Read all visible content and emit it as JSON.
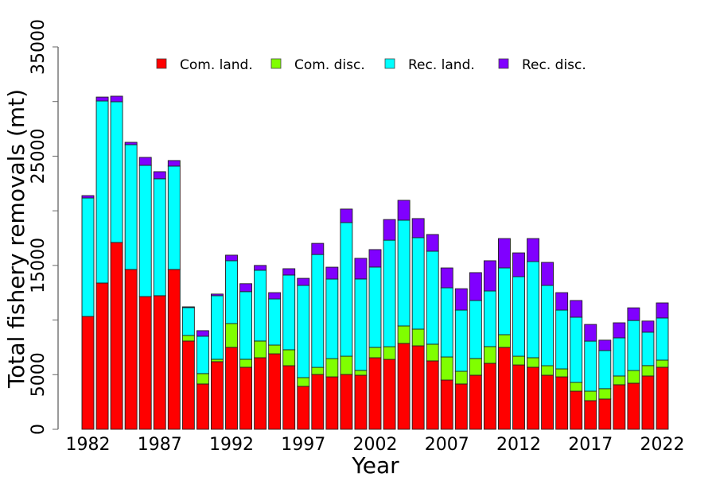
{
  "chart_data": {
    "type": "bar",
    "stacked": true,
    "title": "",
    "xlabel": "Year",
    "ylabel": "Total fishery removals (mt)",
    "ylim": [
      0,
      35000
    ],
    "yticks": [
      0,
      5000,
      10000,
      15000,
      20000,
      25000,
      30000,
      35000
    ],
    "ytick_labels": [
      "0",
      "5000",
      "",
      "15000",
      "",
      "25000",
      "",
      "35000"
    ],
    "xtick_labels": [
      "1982",
      "1987",
      "1992",
      "1997",
      "2002",
      "2007",
      "2012",
      "2017",
      "2022"
    ],
    "legend_position": "top-center",
    "grid": false,
    "categories": [
      1982,
      1983,
      1984,
      1985,
      1986,
      1987,
      1988,
      1989,
      1990,
      1991,
      1992,
      1993,
      1994,
      1995,
      1996,
      1997,
      1998,
      1999,
      2000,
      2001,
      2002,
      2003,
      2004,
      2005,
      2006,
      2007,
      2008,
      2009,
      2010,
      2011,
      2012,
      2013,
      2014,
      2015,
      2016,
      2017,
      2018,
      2019,
      2020,
      2021,
      2022
    ],
    "series": [
      {
        "name": "Com. land.",
        "color": "#FF0000",
        "values": [
          10330,
          13390,
          17100,
          14630,
          12150,
          12230,
          14630,
          8080,
          4150,
          6190,
          7500,
          5680,
          6550,
          6910,
          5820,
          3930,
          5020,
          4800,
          5020,
          4950,
          6550,
          6400,
          7860,
          7640,
          6260,
          4510,
          4150,
          4950,
          6040,
          7500,
          5890,
          5680,
          4950,
          4800,
          3490,
          2620,
          2770,
          4080,
          4220,
          4880,
          5680
        ]
      },
      {
        "name": "Com. disc.",
        "color": "#80FF00",
        "values": [
          0,
          0,
          0,
          0,
          0,
          0,
          0,
          510,
          950,
          220,
          2180,
          730,
          1530,
          800,
          1460,
          800,
          650,
          1670,
          1670,
          440,
          950,
          1160,
          1600,
          1530,
          1530,
          2110,
          1160,
          1530,
          1530,
          1160,
          800,
          870,
          870,
          730,
          800,
          870,
          950,
          800,
          1160,
          950,
          650
        ]
      },
      {
        "name": "Rec. land.",
        "color": "#00FFFF",
        "values": [
          10840,
          16660,
          12880,
          11420,
          12010,
          10700,
          9460,
          2550,
          3420,
          5820,
          5750,
          6190,
          6480,
          4220,
          6840,
          8440,
          10330,
          7280,
          12230,
          8370,
          7350,
          9750,
          9680,
          8370,
          8510,
          6330,
          5600,
          5310,
          5090,
          6110,
          7280,
          8800,
          7350,
          5380,
          5970,
          4580,
          3490,
          3490,
          4580,
          3060,
          3860
        ]
      },
      {
        "name": "Rec. disc.",
        "color": "#8000FF",
        "values": [
          220,
          360,
          510,
          220,
          730,
          650,
          510,
          70,
          510,
          150,
          510,
          730,
          440,
          580,
          580,
          650,
          1020,
          1090,
          1240,
          1890,
          1600,
          1890,
          1820,
          1750,
          1530,
          1820,
          1960,
          2550,
          2770,
          2690,
          2180,
          2110,
          2110,
          1600,
          1530,
          1530,
          950,
          1380,
          1160,
          1020,
          1380
        ]
      }
    ]
  }
}
